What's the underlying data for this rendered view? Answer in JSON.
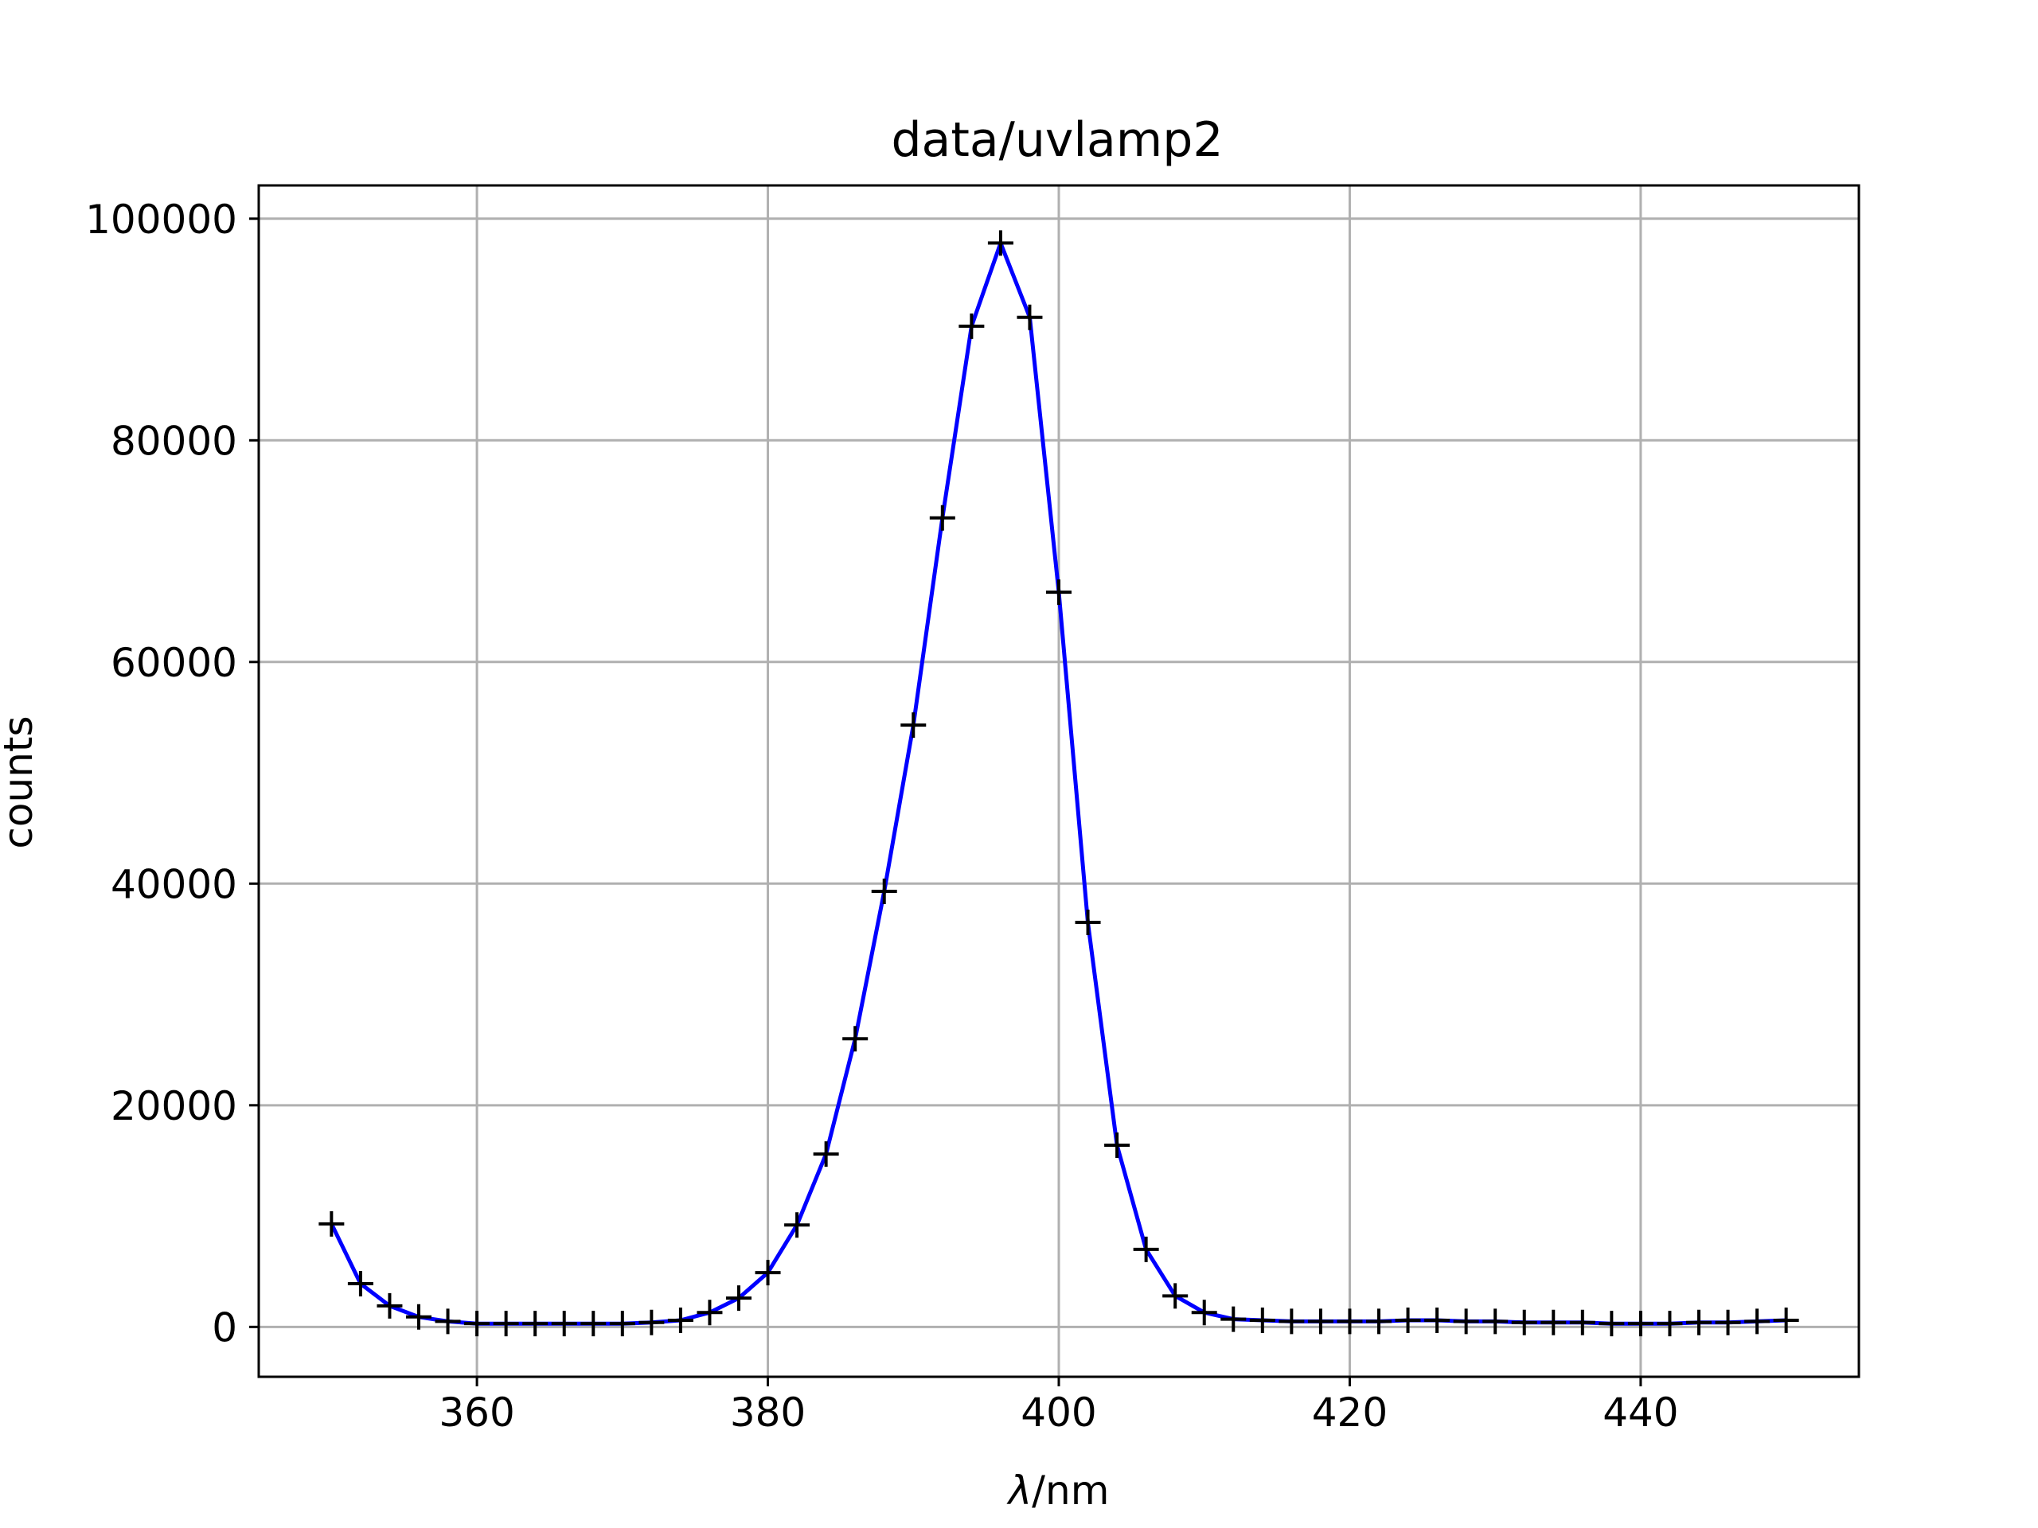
{
  "chart_data": {
    "type": "line",
    "title": "data/uvlamp2",
    "xlabel_symbol": "λ",
    "xlabel_unit": "/nm",
    "ylabel": "counts",
    "xlim": [
      345,
      455
    ],
    "ylim": [
      -4500,
      103000
    ],
    "xticks": [
      360,
      380,
      400,
      420,
      440
    ],
    "yticks": [
      0,
      20000,
      40000,
      60000,
      80000,
      100000
    ],
    "grid": true,
    "line_color": "#0000ff",
    "marker_color": "#000000",
    "marker": "plus",
    "x": [
      350,
      352,
      354,
      356,
      358,
      360,
      362,
      364,
      366,
      368,
      370,
      372,
      374,
      376,
      378,
      380,
      382,
      384,
      386,
      388,
      390,
      392,
      394,
      396,
      398,
      400,
      402,
      404,
      406,
      408,
      410,
      412,
      414,
      416,
      418,
      420,
      422,
      424,
      426,
      428,
      430,
      432,
      434,
      436,
      438,
      440,
      442,
      444,
      446,
      448,
      450
    ],
    "y": [
      9300,
      3900,
      1900,
      900,
      500,
      300,
      300,
      300,
      300,
      300,
      300,
      400,
      600,
      1300,
      2600,
      4900,
      9200,
      15600,
      26000,
      39300,
      54300,
      73000,
      90300,
      97800,
      91100,
      66300,
      36500,
      16400,
      7000,
      2800,
      1300,
      700,
      600,
      500,
      500,
      500,
      500,
      600,
      600,
      500,
      500,
      400,
      400,
      400,
      300,
      300,
      300,
      400,
      400,
      500,
      600
    ]
  }
}
